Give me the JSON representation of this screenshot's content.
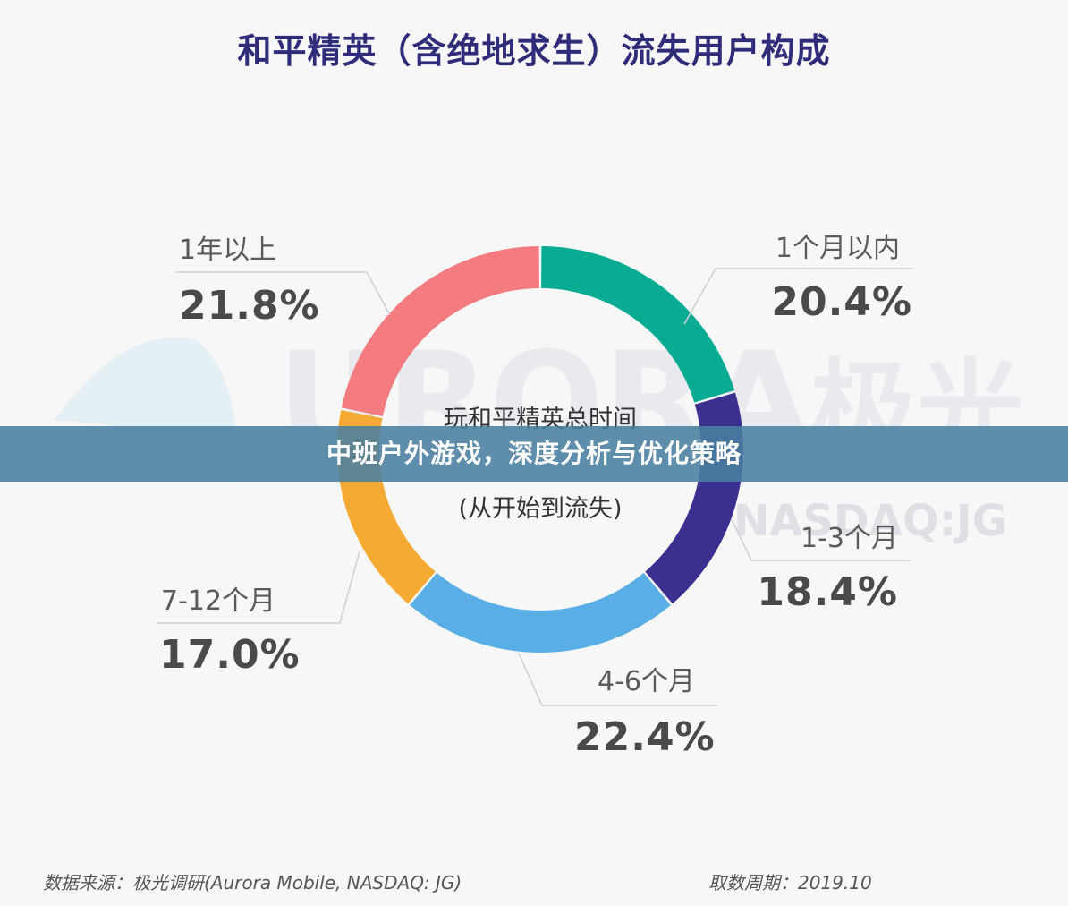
{
  "title": "和平精英（含绝地求生）流失用户构成",
  "center_label": {
    "line1": "玩和平精英总时间",
    "line3": "(从开始到流失)"
  },
  "watermark": {
    "text_main": "URORA",
    "text_cn": "极光",
    "text_ticker": "NASDAQ:JG"
  },
  "banner": {
    "text": "中班户外游戏，深度分析与优化策略"
  },
  "footer": {
    "source": "数据来源：极光调研(Aurora Mobile, NASDAQ: JG)",
    "date": "取数周期：2019.10"
  },
  "chart_data": {
    "type": "pie",
    "title": "和平精英（含绝地求生）流失用户构成",
    "donut": true,
    "slices": [
      {
        "label": "1个月以内",
        "value": 20.4,
        "display": "20.4%",
        "color": "#0aab93"
      },
      {
        "label": "1-3个月",
        "value": 18.4,
        "display": "18.4%",
        "color": "#3b2f8f"
      },
      {
        "label": "4-6个月",
        "value": 22.4,
        "display": "22.4%",
        "color": "#5aaee6"
      },
      {
        "label": "7-12个月",
        "value": 17.0,
        "display": "17.0%",
        "color": "#f5ab33"
      },
      {
        "label": "1年以上",
        "value": 21.8,
        "display": "21.8%",
        "color": "#f47b7f"
      }
    ]
  },
  "colors": {
    "title": "#2f2c7a",
    "banner_bg": "#4a80a0"
  }
}
